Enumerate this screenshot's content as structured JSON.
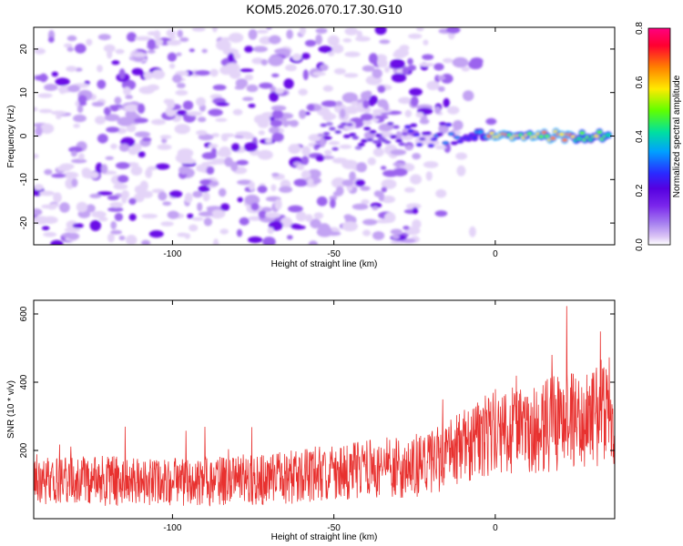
{
  "title": "KOM5.2026.070.17.30.G10",
  "colors": {
    "snr_line": "#e8312f",
    "axis": "#000000",
    "colorscale": [
      "#ffffff",
      "#d9c2f5",
      "#a67ff0",
      "#7a26ec",
      "#5500e0",
      "#2a2aff",
      "#00a0ff",
      "#00e0a0",
      "#60ff00",
      "#ffea00",
      "#ff8000",
      "#ff0030",
      "#ff0080"
    ]
  },
  "chart_data": [
    {
      "type": "heatmap",
      "title": "KOM5.2026.070.17.30.G10",
      "xlabel": "Height of straight line (km)",
      "ylabel": "Frequency (Hz)",
      "xlim": [
        -143,
        37
      ],
      "ylim": [
        -25,
        25
      ],
      "xticks": [
        -100,
        -50,
        0
      ],
      "yticks": [
        -20,
        -10,
        0,
        10,
        20
      ],
      "colorbar": {
        "label": "Normalized spectral amplitude",
        "range": [
          0,
          0.8
        ],
        "ticks": [
          "0.0",
          "0.2",
          "0.4",
          "0.6",
          "0.8"
        ]
      },
      "features": [
        {
          "name": "noise_field",
          "x_range": [
            -143,
            -25
          ],
          "y_range": [
            -25,
            25
          ],
          "amplitude": 0.08
        },
        {
          "name": "signal_ridge",
          "x_range": [
            -55,
            35
          ],
          "frequency": 0,
          "peak_amplitude": 0.8,
          "peak_x": [
            -2,
            25
          ]
        }
      ]
    },
    {
      "type": "line",
      "xlabel": "Height of straight line (km)",
      "ylabel": "SNR (10 * v/v)",
      "xlim": [
        -143,
        37
      ],
      "ylim": [
        0,
        640
      ],
      "xticks": [
        -100,
        -50,
        0
      ],
      "yticks": [
        200,
        400,
        600
      ],
      "series": [
        {
          "name": "SNR",
          "color": "#e8312f",
          "x": [
            -140,
            -130,
            -120,
            -110,
            -100,
            -90,
            -80,
            -70,
            -60,
            -50,
            -40,
            -30,
            -20,
            -10,
            0,
            10,
            20,
            30,
            35
          ],
          "mean": [
            110,
            115,
            112,
            110,
            108,
            110,
            112,
            115,
            125,
            140,
            145,
            150,
            160,
            210,
            260,
            270,
            280,
            300,
            320
          ],
          "spread": [
            70,
            70,
            75,
            70,
            70,
            72,
            72,
            75,
            80,
            85,
            85,
            90,
            95,
            110,
            130,
            140,
            140,
            150,
            160
          ]
        }
      ]
    }
  ]
}
